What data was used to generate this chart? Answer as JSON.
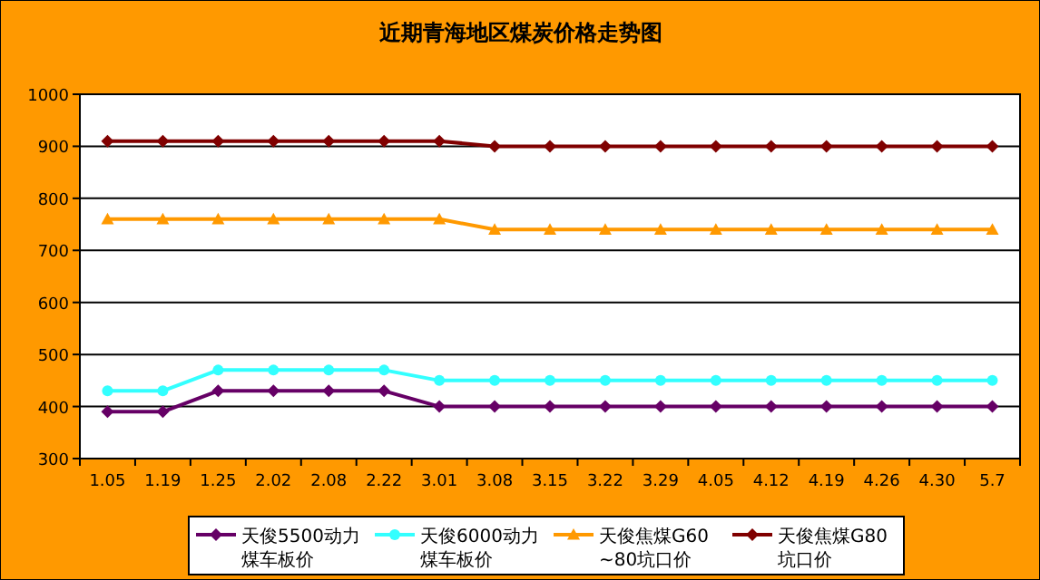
{
  "chart_data": {
    "type": "line",
    "title": "近期青海地区煤炭价格走势图",
    "categories": [
      "1.05",
      "1.19",
      "1.25",
      "2.02",
      "2.08",
      "2.22",
      "3.01",
      "3.08",
      "3.15",
      "3.22",
      "3.29",
      "4.05",
      "4.12",
      "4.19",
      "4.26",
      "4.30",
      "5.7"
    ],
    "series": [
      {
        "name": "天俊5500动力煤车板价",
        "color": "#660066",
        "marker": "diamond",
        "values": [
          390,
          390,
          430,
          430,
          430,
          430,
          400,
          400,
          400,
          400,
          400,
          400,
          400,
          400,
          400,
          400,
          400
        ]
      },
      {
        "name": "天俊6000动力煤车板价",
        "color": "#33ffff",
        "marker": "circle",
        "values": [
          430,
          430,
          470,
          470,
          470,
          470,
          450,
          450,
          450,
          450,
          450,
          450,
          450,
          450,
          450,
          450,
          450
        ]
      },
      {
        "name": "天俊焦煤G60~80坑口价",
        "color": "#ff9900",
        "marker": "triangle",
        "values": [
          760,
          760,
          760,
          760,
          760,
          760,
          760,
          740,
          740,
          740,
          740,
          740,
          740,
          740,
          740,
          740,
          740
        ]
      },
      {
        "name": "天俊焦煤G80坑口价",
        "color": "#800000",
        "marker": "diamond",
        "values": [
          910,
          910,
          910,
          910,
          910,
          910,
          910,
          900,
          900,
          900,
          900,
          900,
          900,
          900,
          900,
          900,
          900
        ]
      }
    ],
    "ylim": [
      300,
      1000
    ],
    "yticks": [
      300,
      400,
      500,
      600,
      700,
      800,
      900,
      1000
    ],
    "grid": "y",
    "legend": "bottom",
    "line_style": "solid"
  }
}
